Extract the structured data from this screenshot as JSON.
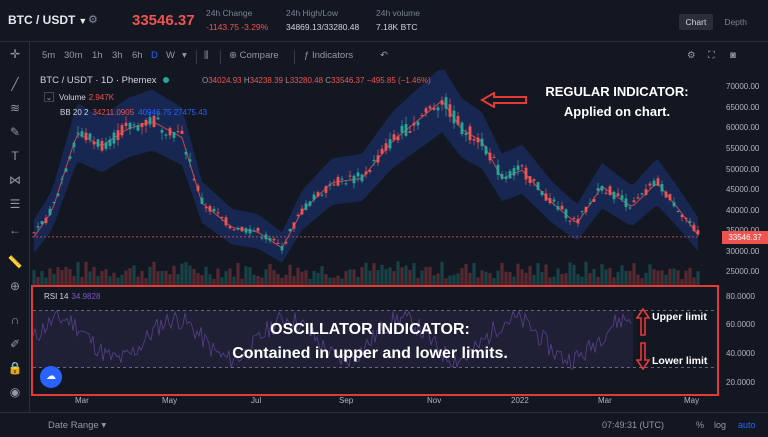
{
  "header": {
    "pair": "BTC / USDT",
    "last_price": "33546.37",
    "stats": [
      {
        "label": "24h Change",
        "value": "-1143.75 -3.29%"
      },
      {
        "label": "24h High/Low",
        "value": "34869.13/33280.48"
      },
      {
        "label": "24h volume",
        "value": "7.18K BTC"
      }
    ],
    "tabs": [
      "Chart",
      "Depth"
    ]
  },
  "toolbar": {
    "intervals": [
      "5m",
      "30m",
      "1h",
      "3h",
      "6h",
      "D",
      "W"
    ],
    "active_interval": "D",
    "compare": "Compare",
    "indicators": "Indicators"
  },
  "legend": {
    "symbol": "BTC / USDT · 1D · Phemex",
    "open_label": "O",
    "open": "34024.93",
    "high_label": "H",
    "high": "34238.39",
    "low_label": "L",
    "low": "33280.48",
    "close_label": "C",
    "close": "33546.37",
    "change": "−495.85 (−1.46%)",
    "volume_label": "Volume",
    "volume_value": "2.947K",
    "bb_label": "BB 20 2",
    "bb_value1": "34211.0905",
    "bb_value2": "40946.75 27475.43"
  },
  "annotations": {
    "regular_line1": "REGULAR INDICATOR:",
    "regular_line2": "Applied on chart.",
    "osc_line1": "OSCILLATOR INDICATOR:",
    "osc_line2": "Contained in upper and lower limits.",
    "upper": "Upper limit",
    "lower": "Lower limit"
  },
  "rsi": {
    "label": "RSI 14",
    "value": "34.9828"
  },
  "y_axis": [
    "70000.00",
    "65000.00",
    "60000.00",
    "55000.00",
    "50000.00",
    "45000.00",
    "40000.00",
    "35000.00",
    "30000.00",
    "25000.00"
  ],
  "price_tag": "33546.37",
  "osc_axis": [
    "80.0000",
    "60.0000",
    "40.0000",
    "20.0000"
  ],
  "x_axis": [
    "Mar",
    "May",
    "Jul",
    "Sep",
    "Nov",
    "2022",
    "Mar",
    "May"
  ],
  "bottom": {
    "date_range": "Date Range",
    "time": "07:49:31 (UTC)",
    "options": [
      "%",
      "log",
      "auto"
    ]
  },
  "colors": {
    "up": "#26a69a",
    "down": "#ef5350",
    "band": "#2962ff",
    "rsi": "#7e57c2",
    "highlight": "#e53935"
  }
}
